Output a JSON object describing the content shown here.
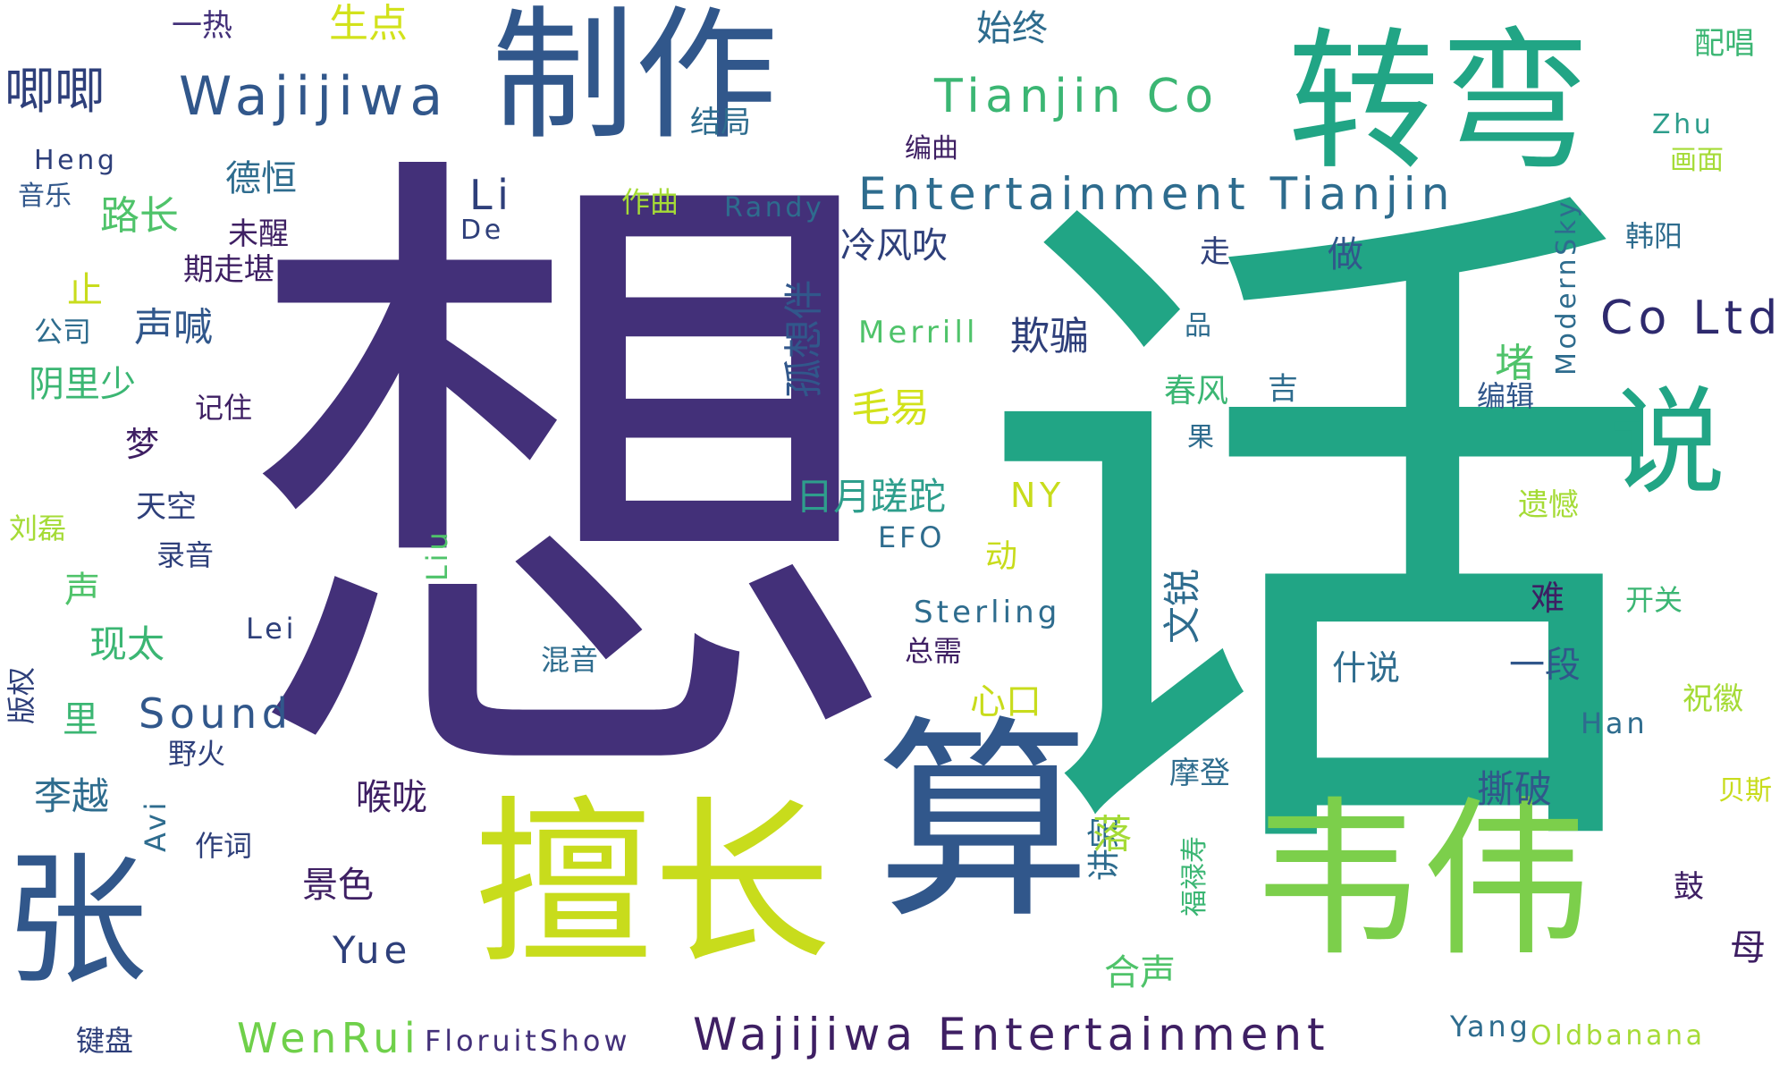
{
  "words": [
    {
      "text": "话",
      "color": "#21a585"
    },
    {
      "text": "想",
      "color": "#433079"
    },
    {
      "text": "韦伟",
      "color": "#7ccf4b"
    },
    {
      "text": "算",
      "color": "#31578b"
    },
    {
      "text": "擅长",
      "color": "#c8dc1c"
    },
    {
      "text": "制作",
      "color": "#31578b"
    },
    {
      "text": "转弯",
      "color": "#21a585"
    },
    {
      "text": "张",
      "color": "#31578b"
    },
    {
      "text": "说",
      "color": "#21a585"
    },
    {
      "text": "Wajijiwa",
      "color": "#31578b"
    },
    {
      "text": "Tianjin Co",
      "color": "#3bb673"
    },
    {
      "text": "Entertainment Tianjin",
      "color": "#2e6c8e"
    },
    {
      "text": "Wajijiwa Entertainment",
      "color": "#3e1f63"
    },
    {
      "text": "Co Ltd",
      "color": "#2e2a6e"
    },
    {
      "text": "Sound",
      "color": "#31578b"
    },
    {
      "text": "WenRui",
      "color": "#6fd04a"
    },
    {
      "text": "FloruitShow",
      "color": "#433079"
    },
    {
      "text": "Oldbanana",
      "color": "#a5db36"
    },
    {
      "text": "Yang",
      "color": "#2e6c8e"
    },
    {
      "text": "Yue",
      "color": "#2e3f7a"
    },
    {
      "text": "Li",
      "color": "#2e3f7a"
    },
    {
      "text": "Lei",
      "color": "#2e3f7a"
    },
    {
      "text": "Liu",
      "color": "#4fc36a"
    },
    {
      "text": "Avi",
      "color": "#2e6c8e"
    },
    {
      "text": "Han",
      "color": "#2e6c8e"
    },
    {
      "text": "Zhu",
      "color": "#2e9e8c"
    },
    {
      "text": "Heng",
      "color": "#2e3f7a"
    },
    {
      "text": "De",
      "color": "#2e3f7a"
    },
    {
      "text": "Randy",
      "color": "#2e6c8e"
    },
    {
      "text": "Merrill",
      "color": "#4fc36a"
    },
    {
      "text": "Sterling",
      "color": "#2e6c8e"
    },
    {
      "text": "EFO",
      "color": "#2e6c8e"
    },
    {
      "text": "NY",
      "color": "#c8dc1c"
    },
    {
      "text": "ModernSky",
      "color": "#2e6c8e"
    },
    {
      "text": "唧唧",
      "color": "#2e3f7a"
    },
    {
      "text": "一热",
      "color": "#433079"
    },
    {
      "text": "生点",
      "color": "#d2e21b"
    },
    {
      "text": "始终",
      "color": "#2e6c8e"
    },
    {
      "text": "配唱",
      "color": "#3bb673"
    },
    {
      "text": "结局",
      "color": "#2e6c8e"
    },
    {
      "text": "编曲",
      "color": "#3e1f63"
    },
    {
      "text": "画面",
      "color": "#a5db36"
    },
    {
      "text": "音乐",
      "color": "#31578b"
    },
    {
      "text": "德恒",
      "color": "#2e6c8e"
    },
    {
      "text": "路长",
      "color": "#4fc36a"
    },
    {
      "text": "作曲",
      "color": "#a5db36"
    },
    {
      "text": "未醒",
      "color": "#3e1f63"
    },
    {
      "text": "期走堪",
      "color": "#3e1f63"
    },
    {
      "text": "冷风吹",
      "color": "#2e3f7a"
    },
    {
      "text": "走",
      "color": "#2e3f7a"
    },
    {
      "text": "做",
      "color": "#31578b"
    },
    {
      "text": "韩阳",
      "color": "#2e6c8e"
    },
    {
      "text": "止",
      "color": "#c8dc1c"
    },
    {
      "text": "公司",
      "color": "#2e6c8e"
    },
    {
      "text": "声喊",
      "color": "#31578b"
    },
    {
      "text": "孤想伴",
      "color": "#31578b"
    },
    {
      "text": "欺骗",
      "color": "#2e3f7a"
    },
    {
      "text": "品",
      "color": "#2e6c8e"
    },
    {
      "text": "堵",
      "color": "#4fc36a"
    },
    {
      "text": "阴里少",
      "color": "#3bb673"
    },
    {
      "text": "毛易",
      "color": "#d2e21b"
    },
    {
      "text": "记住",
      "color": "#3e1f63"
    },
    {
      "text": "春风",
      "color": "#3bb673"
    },
    {
      "text": "吉",
      "color": "#2e6c8e"
    },
    {
      "text": "编辑",
      "color": "#31578b"
    },
    {
      "text": "梦",
      "color": "#3e1f63"
    },
    {
      "text": "果",
      "color": "#2e6c8e"
    },
    {
      "text": "天空",
      "color": "#2e3f7a"
    },
    {
      "text": "日月蹉跎",
      "color": "#2e9e8c"
    },
    {
      "text": "遗憾",
      "color": "#a5db36"
    },
    {
      "text": "刘磊",
      "color": "#a5db36"
    },
    {
      "text": "录音",
      "color": "#2e3f7a"
    },
    {
      "text": "动",
      "color": "#c8dc1c"
    },
    {
      "text": "声",
      "color": "#4fc36a"
    },
    {
      "text": "文锐",
      "color": "#2e6c8e"
    },
    {
      "text": "难",
      "color": "#3e1f63"
    },
    {
      "text": "开关",
      "color": "#3bb673"
    },
    {
      "text": "现太",
      "color": "#3bb673"
    },
    {
      "text": "总需",
      "color": "#3e1f63"
    },
    {
      "text": "什说",
      "color": "#2e6c8e"
    },
    {
      "text": "一段",
      "color": "#31578b"
    },
    {
      "text": "混音",
      "color": "#2e6c8e"
    },
    {
      "text": "版权",
      "color": "#2e3f7a"
    },
    {
      "text": "里",
      "color": "#3bb673"
    },
    {
      "text": "心口",
      "color": "#c8dc1c"
    },
    {
      "text": "祝徽",
      "color": "#a5db36"
    },
    {
      "text": "野火",
      "color": "#2e3f7a"
    },
    {
      "text": "李越",
      "color": "#2e6c8e"
    },
    {
      "text": "喉咙",
      "color": "#3e1f63"
    },
    {
      "text": "撕破",
      "color": "#31578b"
    },
    {
      "text": "摩登",
      "color": "#2e6c8e"
    },
    {
      "text": "贝斯",
      "color": "#c8dc1c"
    },
    {
      "text": "讲完",
      "color": "#2e6c8e"
    },
    {
      "text": "落",
      "color": "#a5db36"
    },
    {
      "text": "福禄寿",
      "color": "#3bb673"
    },
    {
      "text": "作词",
      "color": "#2e3f7a"
    },
    {
      "text": "鼓",
      "color": "#3e1f63"
    },
    {
      "text": "景色",
      "color": "#3e1f63"
    },
    {
      "text": "合声",
      "color": "#4fc36a"
    },
    {
      "text": "母",
      "color": "#3e1f63"
    },
    {
      "text": "键盘",
      "color": "#2e3f7a"
    }
  ]
}
